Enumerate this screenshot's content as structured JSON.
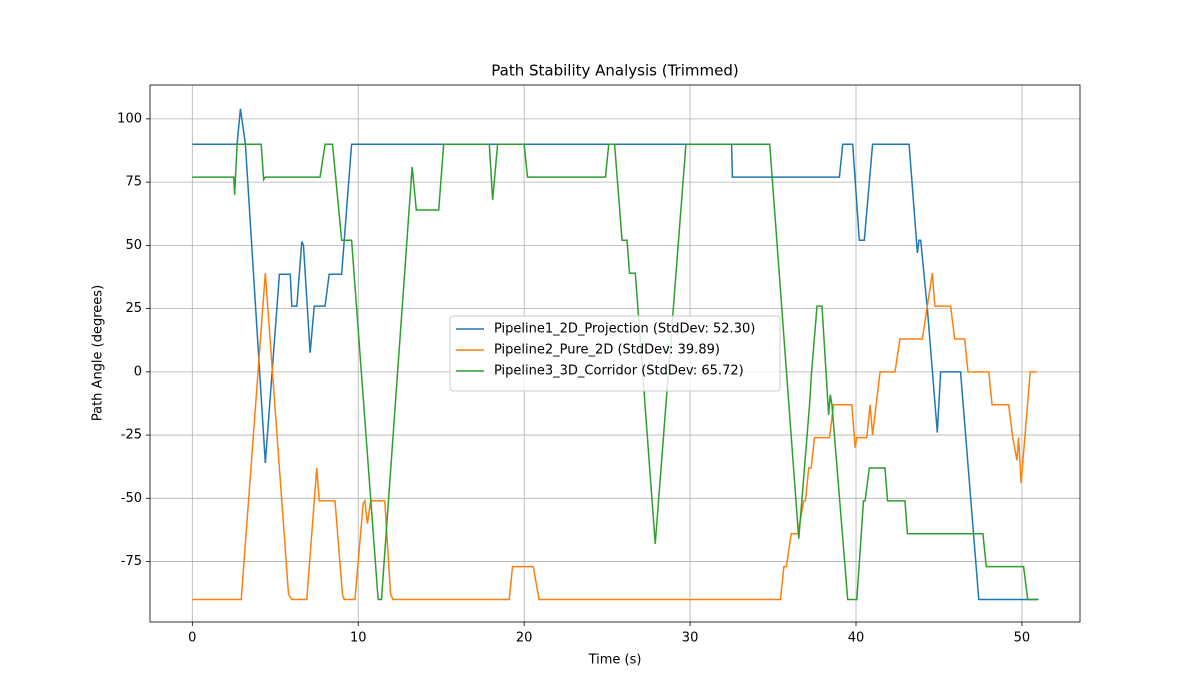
{
  "chart_data": {
    "type": "line",
    "title": "Path Stability Analysis (Trimmed)",
    "x_label": "Time (s)",
    "y_label": "Path Angle (degrees)",
    "xlim": [
      -2.55,
      53.5
    ],
    "ylim": [
      -98.9,
      113.4
    ],
    "xticks": [
      0,
      10,
      20,
      30,
      40,
      50
    ],
    "yticks": [
      -75,
      -50,
      -25,
      0,
      25,
      50,
      75,
      100
    ],
    "grid": true,
    "legend": "center",
    "series": [
      {
        "name": "Pipeline1_2D_Projection (StdDev: 52.30)",
        "color": "#1f77b4",
        "x": [
          0,
          2.7,
          2.9,
          3.2,
          4.4,
          5.25,
          5.9,
          6.0,
          6.3,
          6.6,
          6.7,
          7.1,
          7.35,
          8.0,
          8.25,
          9.0,
          9.6,
          32.5,
          32.55,
          39.0,
          39.2,
          39.8,
          40.2,
          40.5,
          41.0,
          43.2,
          43.7,
          43.8,
          43.9,
          44.3,
          44.9,
          45.1,
          46.3,
          47.4,
          51.0
        ],
        "values": [
          90,
          90,
          104,
          90,
          -36,
          38.6,
          38.6,
          26,
          26,
          51.5,
          50,
          7.5,
          26,
          26,
          38.6,
          38.6,
          90,
          90,
          77,
          77,
          90,
          90,
          52,
          52,
          90,
          90,
          47,
          52,
          52,
          25,
          -24,
          0,
          0,
          -90,
          -90
        ]
      },
      {
        "name": "Pipeline2_Pure_2D (StdDev: 39.89)",
        "color": "#ff7f0e",
        "x": [
          0,
          2.95,
          4.4,
          5.8,
          6.0,
          6.9,
          7.5,
          7.65,
          8.6,
          9.05,
          9.15,
          9.8,
          10.3,
          10.4,
          10.55,
          10.75,
          11.6,
          11.95,
          12.1,
          19.1,
          19.3,
          20.55,
          20.9,
          35.45,
          35.65,
          35.8,
          36.1,
          36.5,
          36.85,
          36.95,
          37.15,
          37.3,
          37.5,
          38.4,
          38.65,
          39.75,
          39.95,
          40.05,
          40.65,
          40.85,
          41.0,
          41.45,
          42.35,
          42.65,
          44.0,
          44.3,
          44.6,
          44.75,
          45.7,
          45.95,
          46.55,
          46.75,
          48.0,
          48.2,
          49.2,
          49.45,
          49.7,
          49.8,
          49.95,
          50.5,
          50.9
        ],
        "values": [
          -90,
          -90,
          39,
          -88,
          -90,
          -90,
          -38,
          -51,
          -51,
          -88,
          -90,
          -90,
          -52,
          -51,
          -60,
          -51,
          -51,
          -88,
          -90,
          -90,
          -77,
          -77,
          -90,
          -90,
          -77,
          -77,
          -64,
          -64,
          -51,
          -51,
          -38,
          -38,
          -26,
          -26,
          -13,
          -13,
          -30,
          -26,
          -26,
          -13,
          -25,
          0,
          0,
          13,
          13,
          26,
          39,
          26,
          26,
          13,
          13,
          0,
          0,
          -13,
          -13,
          -26,
          -35,
          -26,
          -44,
          0,
          0
        ]
      },
      {
        "name": "Pipeline3_3D_Corridor (StdDev: 65.72)",
        "color": "#2ca02c",
        "x": [
          0,
          2.5,
          2.55,
          2.7,
          4.15,
          4.3,
          4.4,
          7.7,
          8.0,
          8.45,
          9.0,
          9.6,
          11.2,
          11.4,
          13.25,
          13.5,
          14.85,
          15.15,
          17.9,
          18.1,
          18.4,
          20.0,
          20.2,
          24.9,
          25.1,
          25.45,
          25.9,
          26.2,
          26.35,
          26.7,
          27.9,
          29.75,
          34.8,
          36.55,
          37.2,
          37.25,
          37.3,
          37.65,
          37.95,
          38.35,
          38.45,
          38.55,
          39.5,
          40.05,
          40.45,
          40.55,
          40.8,
          41.75,
          41.9,
          42.95,
          43.1,
          47.65,
          47.85,
          50.1,
          50.35,
          50.95
        ],
        "values": [
          77,
          77,
          70,
          90,
          90,
          76,
          77,
          77,
          90,
          90,
          52,
          52,
          -90,
          -90,
          81,
          64,
          64,
          90,
          90,
          68,
          90,
          90,
          77,
          77,
          90,
          90,
          52,
          52,
          39,
          39,
          -68,
          90,
          90,
          -66,
          -13,
          -8,
          -2,
          26,
          26,
          -17,
          -9,
          -13,
          -90,
          -90,
          -51,
          -51,
          -38,
          -38,
          -51,
          -51,
          -64,
          -64,
          -77,
          -77,
          -90,
          -90
        ]
      }
    ]
  }
}
